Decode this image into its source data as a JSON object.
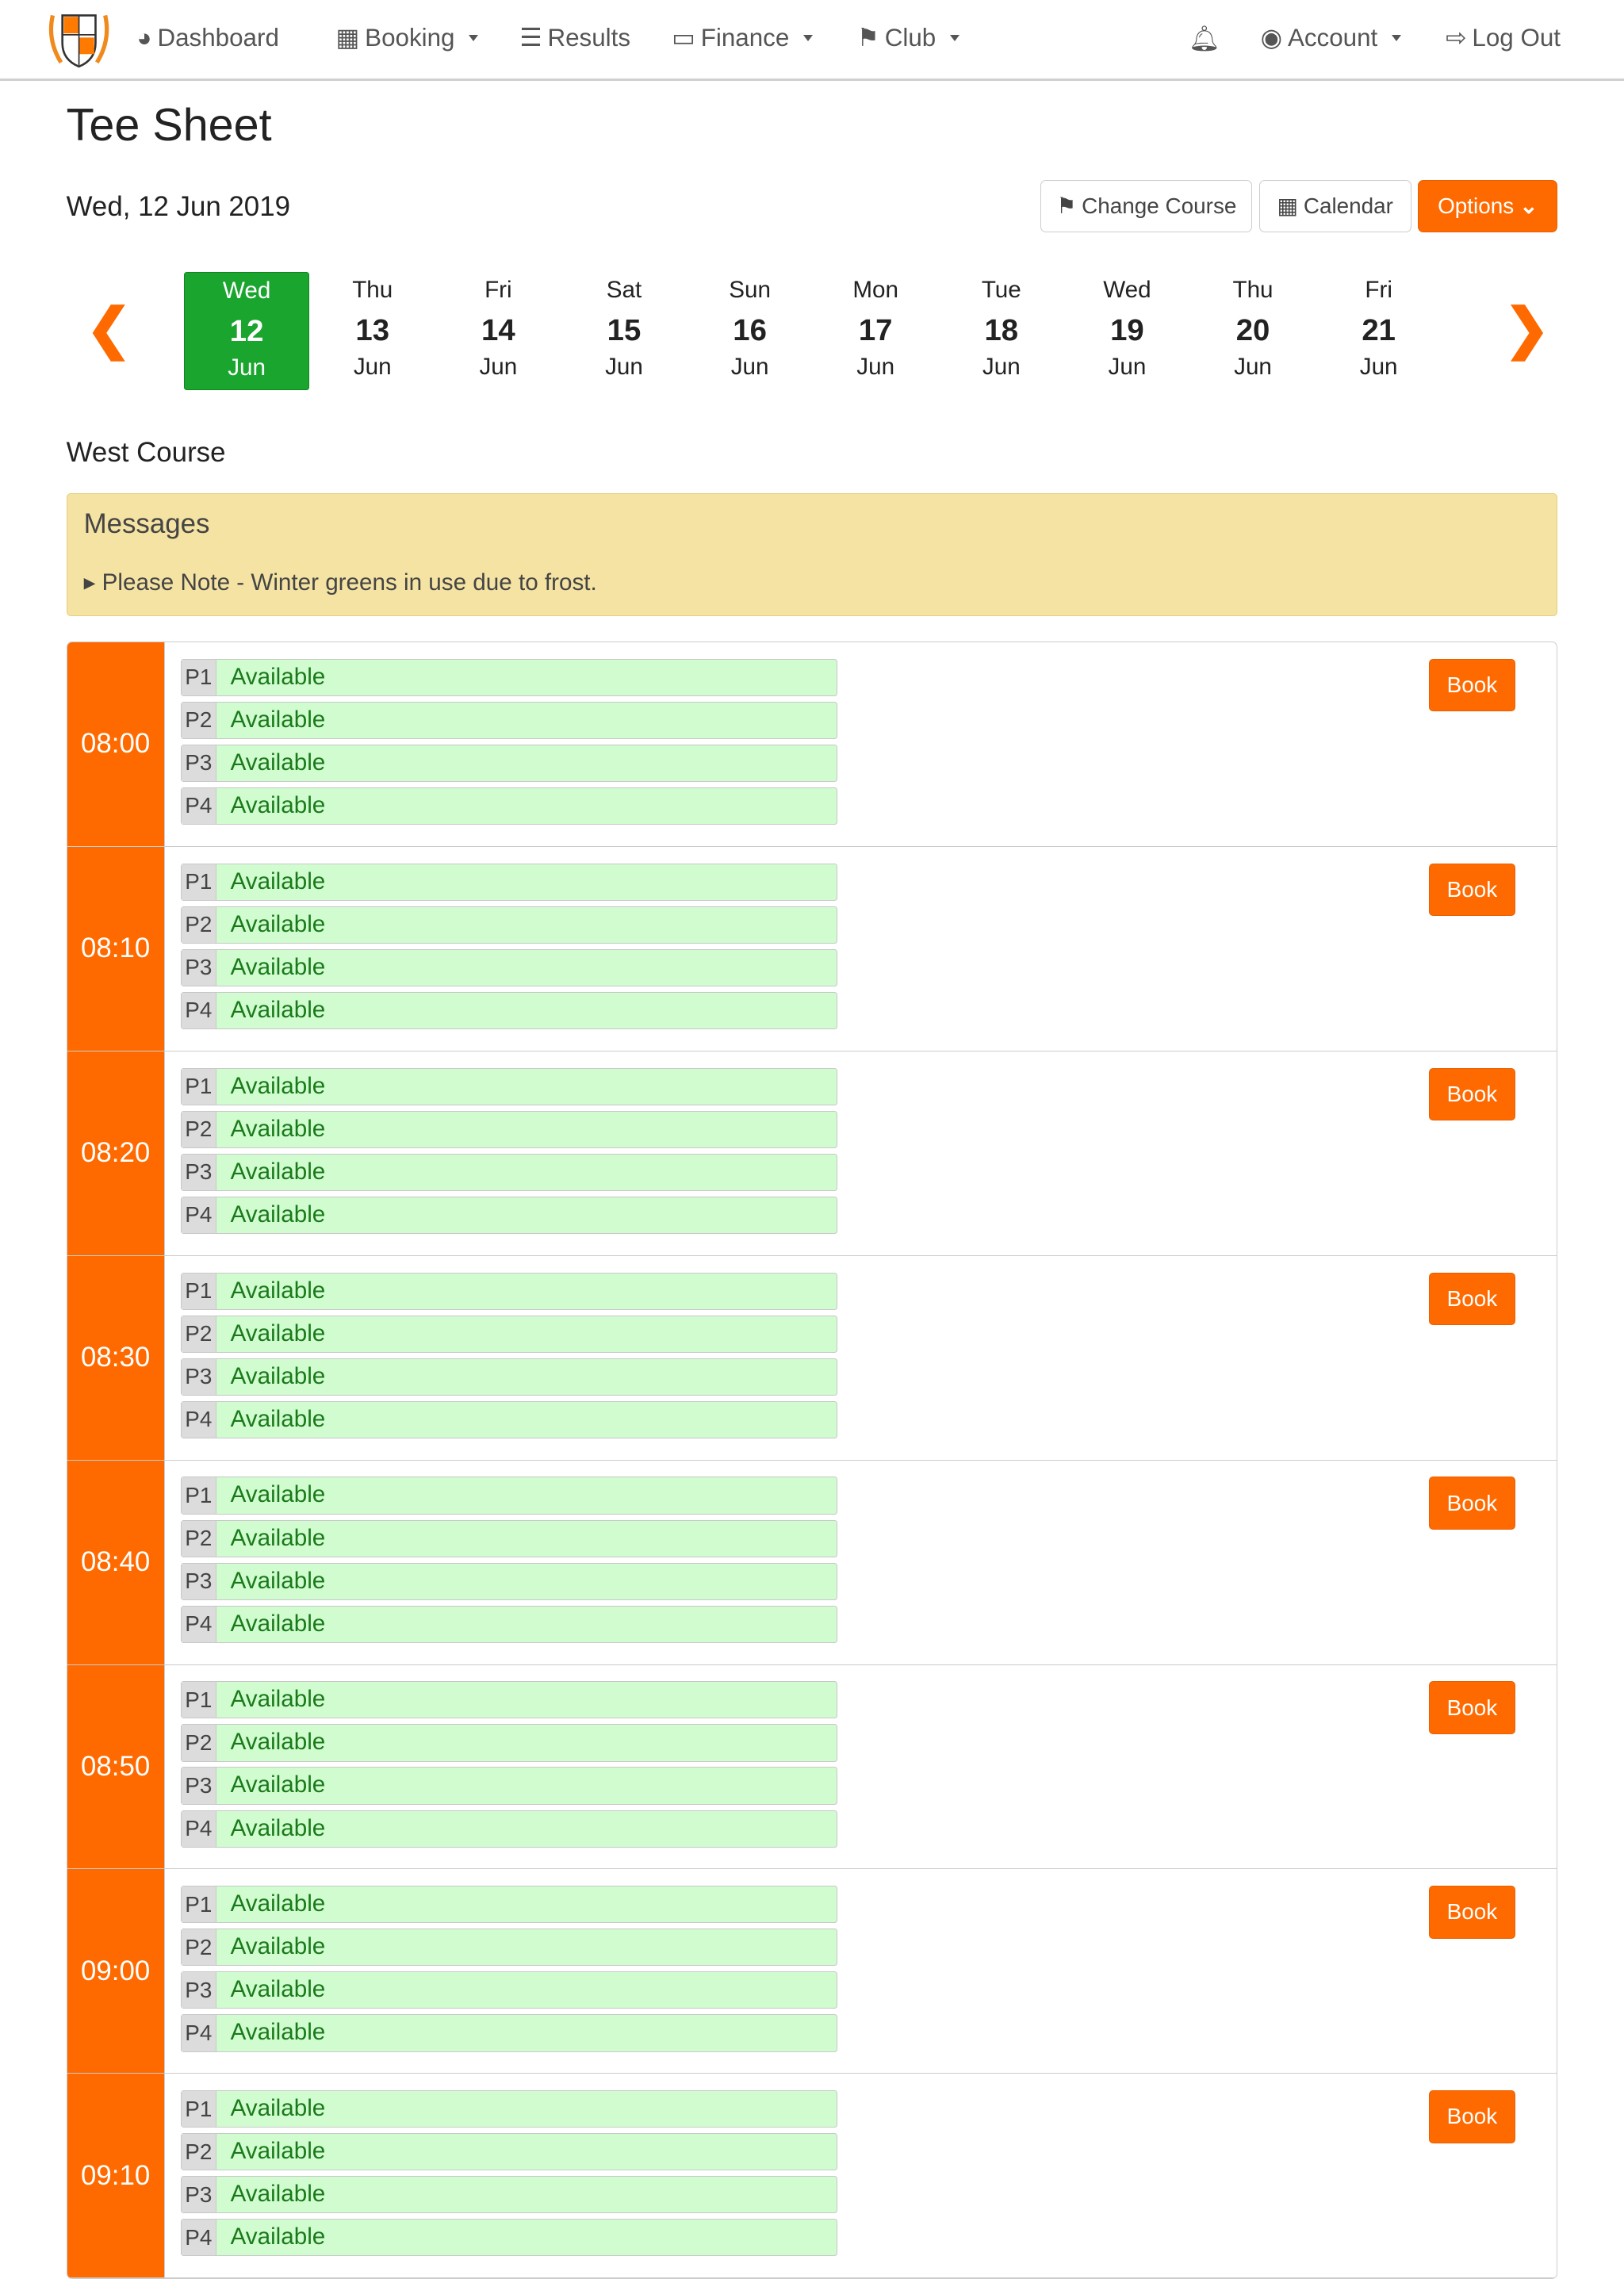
{
  "nav": {
    "dashboard": "Dashboard",
    "booking": "Booking",
    "results": "Results",
    "finance": "Finance",
    "club": "Club",
    "account": "Account",
    "logout": "Log Out"
  },
  "page": {
    "title": "Tee Sheet",
    "date": "Wed, 12 Jun 2019",
    "course": "West Course"
  },
  "toolbar": {
    "change_course": "Change Course",
    "calendar": "Calendar",
    "options": "Options"
  },
  "days": [
    {
      "dow": "Wed",
      "num": "12",
      "mon": "Jun",
      "selected": true
    },
    {
      "dow": "Thu",
      "num": "13",
      "mon": "Jun"
    },
    {
      "dow": "Fri",
      "num": "14",
      "mon": "Jun"
    },
    {
      "dow": "Sat",
      "num": "15",
      "mon": "Jun"
    },
    {
      "dow": "Sun",
      "num": "16",
      "mon": "Jun"
    },
    {
      "dow": "Mon",
      "num": "17",
      "mon": "Jun"
    },
    {
      "dow": "Tue",
      "num": "18",
      "mon": "Jun"
    },
    {
      "dow": "Wed",
      "num": "19",
      "mon": "Jun"
    },
    {
      "dow": "Thu",
      "num": "20",
      "mon": "Jun"
    },
    {
      "dow": "Fri",
      "num": "21",
      "mon": "Jun"
    }
  ],
  "messages": {
    "title": "Messages",
    "items": [
      "Please Note - Winter greens in use due to frost."
    ]
  },
  "colors": {
    "accent": "#ff6a00",
    "selected_day": "#1aa52e",
    "available": "#d0fcd0",
    "message_bg": "#f5e3a3"
  },
  "book_label": "Book",
  "slots": [
    {
      "time": "08:00",
      "players": [
        {
          "p": "P1",
          "status": "Available"
        },
        {
          "p": "P2",
          "status": "Available"
        },
        {
          "p": "P3",
          "status": "Available"
        },
        {
          "p": "P4",
          "status": "Available"
        }
      ]
    },
    {
      "time": "08:10",
      "players": [
        {
          "p": "P1",
          "status": "Available"
        },
        {
          "p": "P2",
          "status": "Available"
        },
        {
          "p": "P3",
          "status": "Available"
        },
        {
          "p": "P4",
          "status": "Available"
        }
      ]
    },
    {
      "time": "08:20",
      "players": [
        {
          "p": "P1",
          "status": "Available"
        },
        {
          "p": "P2",
          "status": "Available"
        },
        {
          "p": "P3",
          "status": "Available"
        },
        {
          "p": "P4",
          "status": "Available"
        }
      ]
    },
    {
      "time": "08:30",
      "players": [
        {
          "p": "P1",
          "status": "Available"
        },
        {
          "p": "P2",
          "status": "Available"
        },
        {
          "p": "P3",
          "status": "Available"
        },
        {
          "p": "P4",
          "status": "Available"
        }
      ]
    },
    {
      "time": "08:40",
      "players": [
        {
          "p": "P1",
          "status": "Available"
        },
        {
          "p": "P2",
          "status": "Available"
        },
        {
          "p": "P3",
          "status": "Available"
        },
        {
          "p": "P4",
          "status": "Available"
        }
      ]
    },
    {
      "time": "08:50",
      "players": [
        {
          "p": "P1",
          "status": "Available"
        },
        {
          "p": "P2",
          "status": "Available"
        },
        {
          "p": "P3",
          "status": "Available"
        },
        {
          "p": "P4",
          "status": "Available"
        }
      ]
    },
    {
      "time": "09:00",
      "players": [
        {
          "p": "P1",
          "status": "Available"
        },
        {
          "p": "P2",
          "status": "Available"
        },
        {
          "p": "P3",
          "status": "Available"
        },
        {
          "p": "P4",
          "status": "Available"
        }
      ]
    },
    {
      "time": "09:10",
      "players": [
        {
          "p": "P1",
          "status": "Available"
        },
        {
          "p": "P2",
          "status": "Available"
        },
        {
          "p": "P3",
          "status": "Available"
        },
        {
          "p": "P4",
          "status": "Available"
        }
      ]
    }
  ]
}
